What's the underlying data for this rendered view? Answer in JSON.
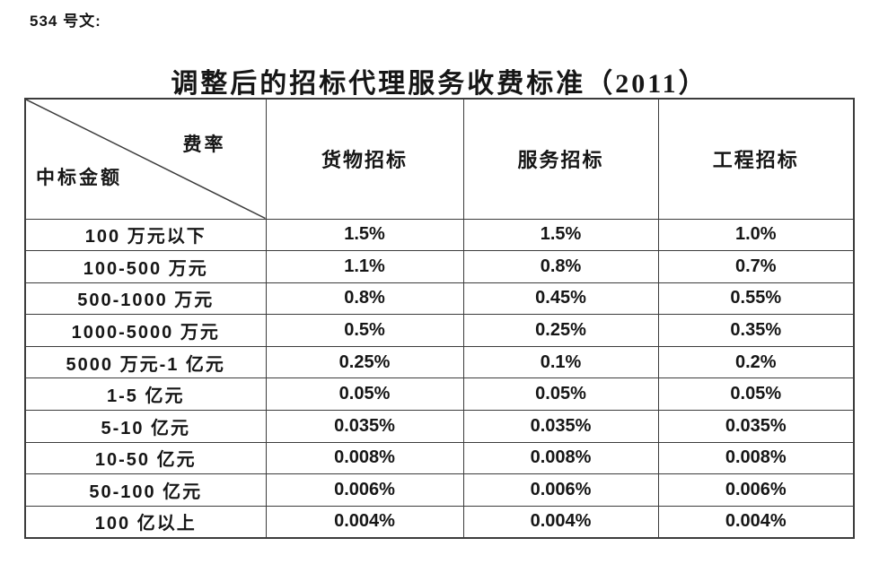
{
  "page": {
    "doc_number": "534 号文:",
    "title": "调整后的招标代理服务收费标准（2011）"
  },
  "table": {
    "corner": {
      "top_right_label": "费率",
      "bottom_left_label": "中标金额"
    },
    "column_headers": [
      "货物招标",
      "服务招标",
      "工程招标"
    ],
    "rows": [
      {
        "label": "100 万元以下",
        "values": [
          "1.5%",
          "1.5%",
          "1.0%"
        ]
      },
      {
        "label": "100-500 万元",
        "values": [
          "1.1%",
          "0.8%",
          "0.7%"
        ]
      },
      {
        "label": "500-1000 万元",
        "values": [
          "0.8%",
          "0.45%",
          "0.55%"
        ]
      },
      {
        "label": "1000-5000 万元",
        "values": [
          "0.5%",
          "0.25%",
          "0.35%"
        ]
      },
      {
        "label": "5000 万元-1 亿元",
        "values": [
          "0.25%",
          "0.1%",
          "0.2%"
        ]
      },
      {
        "label": "1-5 亿元",
        "values": [
          "0.05%",
          "0.05%",
          "0.05%"
        ]
      },
      {
        "label": "5-10 亿元",
        "values": [
          "0.035%",
          "0.035%",
          "0.035%"
        ]
      },
      {
        "label": "10-50 亿元",
        "values": [
          "0.008%",
          "0.008%",
          "0.008%"
        ]
      },
      {
        "label": "50-100 亿元",
        "values": [
          "0.006%",
          "0.006%",
          "0.006%"
        ]
      },
      {
        "label": "100 亿以上",
        "values": [
          "0.004%",
          "0.004%",
          "0.004%"
        ]
      }
    ]
  },
  "chart_data": {
    "type": "table",
    "title": "调整后的招标代理服务收费标准（2011）",
    "row_header": "中标金额",
    "column_header": "费率",
    "columns": [
      "货物招标",
      "服务招标",
      "工程招标"
    ],
    "categories": [
      "100 万元以下",
      "100-500 万元",
      "500-1000 万元",
      "1000-5000 万元",
      "5000 万元-1 亿元",
      "1-5 亿元",
      "5-10 亿元",
      "10-50 亿元",
      "50-100 亿元",
      "100 亿以上"
    ],
    "series": [
      {
        "name": "货物招标",
        "values": [
          "1.5%",
          "1.1%",
          "0.8%",
          "0.5%",
          "0.25%",
          "0.05%",
          "0.035%",
          "0.008%",
          "0.006%",
          "0.004%"
        ]
      },
      {
        "name": "服务招标",
        "values": [
          "1.5%",
          "0.8%",
          "0.45%",
          "0.25%",
          "0.1%",
          "0.05%",
          "0.035%",
          "0.008%",
          "0.006%",
          "0.004%"
        ]
      },
      {
        "name": "工程招标",
        "values": [
          "1.0%",
          "0.7%",
          "0.55%",
          "0.35%",
          "0.2%",
          "0.05%",
          "0.035%",
          "0.008%",
          "0.006%",
          "0.004%"
        ]
      }
    ]
  },
  "colors": {
    "background": "#ffffff",
    "text": "#161616",
    "border": "#3c3c3c"
  }
}
